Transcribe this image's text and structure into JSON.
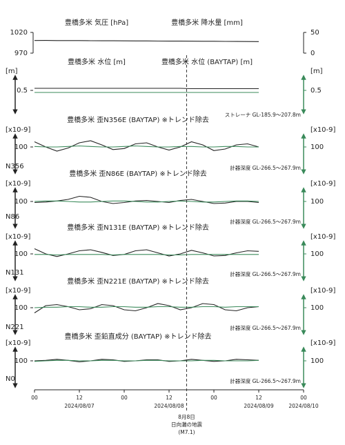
{
  "chart_data": [
    {
      "type": "line",
      "title": "豊橋多米 気圧 [hPa]",
      "title2": "豊橋多米 降水量 [mm]",
      "xlim": [
        0,
        72
      ],
      "ylim": [
        970,
        1020
      ],
      "yticks": [
        970,
        1020
      ],
      "y2lim": [
        0,
        50
      ],
      "y2ticks": [
        0,
        50
      ],
      "x": [
        0,
        3,
        6,
        9,
        12,
        15,
        18,
        21,
        24,
        27,
        30,
        33,
        36,
        39,
        42,
        45,
        48,
        51,
        54,
        57,
        60
      ],
      "series": [
        {
          "color": "#222222",
          "values": [
            1000.5,
            1000.6,
            1000.4,
            1000.3,
            1000.3,
            1000,
            999.8,
            999.8,
            999.6,
            999.5,
            999.5,
            999.2,
            999,
            999,
            998.8,
            998.6,
            998.6,
            998.4,
            998.2,
            998,
            997.8
          ]
        }
      ]
    },
    {
      "type": "line",
      "title": "豊橋多米 水位 [m]",
      "title2": "豊橋多米 水位 (BAYTAP) [m]",
      "ylabel": "[m]",
      "y2label": "[m]",
      "note": "ストレーナ GL-185.9～207.8m",
      "xlim": [
        0,
        72
      ],
      "ylim": [
        0,
        1
      ],
      "yticks": [
        0.5
      ],
      "y2lim": [
        0,
        1
      ],
      "y2ticks": [
        0.5
      ],
      "x": [
        0,
        3,
        6,
        9,
        12,
        15,
        18,
        21,
        24,
        27,
        30,
        33,
        36,
        39,
        42,
        45,
        48,
        51,
        54,
        57,
        60
      ],
      "series": [
        {
          "color": "#222222",
          "values": [
            0.56,
            0.56,
            0.56,
            0.56,
            0.56,
            0.56,
            0.56,
            0.56,
            0.56,
            0.56,
            0.56,
            0.56,
            0.56,
            0.56,
            0.55,
            0.55,
            0.55,
            0.55,
            0.55,
            0.55,
            0.55
          ]
        },
        {
          "color": "#3a8a5a",
          "axis": "y2",
          "values": [
            0.44,
            0.44,
            0.44,
            0.44,
            0.44,
            0.44,
            0.44,
            0.44,
            0.44,
            0.44,
            0.44,
            0.44,
            0.44,
            0.44,
            0.44,
            0.44,
            0.44,
            0.44,
            0.44,
            0.44,
            0.44
          ]
        }
      ]
    },
    {
      "type": "line",
      "title": "豊橋多米 歪N356E (BAYTAP) ※トレンド除去",
      "ylabel": "[x10-9]",
      "y2label": "[x10-9]",
      "station": "N356",
      "note": "計器深度 GL-266.5～267.9m",
      "xlim": [
        0,
        72
      ],
      "ylim": [
        60,
        140
      ],
      "yticks": [
        100
      ],
      "y2lim": [
        60,
        140
      ],
      "y2ticks": [
        100
      ],
      "x": [
        0,
        3,
        6,
        9,
        12,
        15,
        18,
        21,
        24,
        27,
        30,
        33,
        36,
        39,
        42,
        45,
        48,
        51,
        54,
        57,
        60
      ],
      "series": [
        {
          "color": "#222222",
          "values": [
            110,
            100,
            92,
            98,
            108,
            112,
            104,
            95,
            97,
            106,
            108,
            100,
            94,
            100,
            110,
            104,
            93,
            96,
            104,
            106,
            100
          ]
        },
        {
          "color": "#3a8a5a",
          "axis": "y2",
          "values": [
            101,
            100,
            100,
            101,
            102,
            101,
            100,
            100,
            101,
            102,
            101,
            100,
            100,
            101,
            101,
            100,
            100,
            101,
            101,
            100,
            100
          ]
        }
      ]
    },
    {
      "type": "line",
      "title": "豊橋多米 歪N86E (BAYTAP) ※トレンド除去",
      "ylabel": "[x10-9]",
      "y2label": "[x10-9]",
      "station": "N86",
      "note": "計器深度 GL-266.5～267.9m",
      "xlim": [
        0,
        72
      ],
      "ylim": [
        60,
        140
      ],
      "yticks": [
        100
      ],
      "y2lim": [
        60,
        140
      ],
      "y2ticks": [
        100
      ],
      "x": [
        0,
        3,
        6,
        9,
        12,
        15,
        18,
        21,
        24,
        27,
        30,
        33,
        36,
        39,
        42,
        45,
        48,
        51,
        54,
        57,
        60
      ],
      "series": [
        {
          "color": "#222222",
          "values": [
            98,
            99,
            101,
            104,
            110,
            108,
            100,
            96,
            98,
            101,
            102,
            100,
            98,
            102,
            104,
            100,
            96,
            97,
            100,
            100,
            98
          ]
        },
        {
          "color": "#3a8a5a",
          "axis": "y2",
          "values": [
            100,
            101,
            101,
            100,
            99,
            99,
            100,
            101,
            101,
            100,
            99,
            99,
            100,
            101,
            100,
            99,
            99,
            100,
            101,
            101,
            100
          ]
        }
      ]
    },
    {
      "type": "line",
      "title": "豊橋多米 歪N131E (BAYTAP) ※トレンド除去",
      "ylabel": "[x10-9]",
      "y2label": "[x10-9]",
      "station": "N131",
      "note": "計器深度 GL-266.5～267.9m",
      "xlim": [
        0,
        72
      ],
      "ylim": [
        60,
        140
      ],
      "yticks": [
        100
      ],
      "y2lim": [
        60,
        140
      ],
      "y2ticks": [
        100
      ],
      "x": [
        0,
        3,
        6,
        9,
        12,
        15,
        18,
        21,
        24,
        27,
        30,
        33,
        36,
        39,
        42,
        45,
        48,
        51,
        54,
        57,
        60
      ],
      "series": [
        {
          "color": "#222222",
          "values": [
            110,
            100,
            95,
            100,
            106,
            108,
            103,
            97,
            99,
            106,
            108,
            102,
            96,
            100,
            107,
            102,
            96,
            97,
            102,
            106,
            105
          ]
        },
        {
          "color": "#3a8a5a",
          "axis": "y2",
          "values": [
            99,
            99,
            98,
            99,
            99,
            99,
            99,
            98,
            99,
            99,
            99,
            99,
            98,
            98,
            99,
            99,
            99,
            99,
            99,
            99,
            99
          ]
        }
      ]
    },
    {
      "type": "line",
      "title": "豊橋多米 歪N221E (BAYTAP) ※トレンド除去",
      "ylabel": "[x10-9]",
      "y2label": "[x10-9]",
      "station": "N221",
      "note": "計器深度 GL-266.5～267.9m",
      "xlim": [
        0,
        72
      ],
      "ylim": [
        60,
        140
      ],
      "yticks": [
        100
      ],
      "y2lim": [
        60,
        140
      ],
      "y2ticks": [
        100
      ],
      "x": [
        0,
        3,
        6,
        9,
        12,
        15,
        18,
        21,
        24,
        27,
        30,
        33,
        36,
        39,
        42,
        45,
        48,
        51,
        54,
        57,
        60
      ],
      "series": [
        {
          "color": "#222222",
          "values": [
            90,
            104,
            106,
            102,
            96,
            98,
            106,
            104,
            96,
            94,
            100,
            108,
            104,
            96,
            100,
            108,
            106,
            96,
            94,
            100,
            102
          ]
        },
        {
          "color": "#3a8a5a",
          "axis": "y2",
          "values": [
            100,
            101,
            101,
            102,
            102,
            101,
            101,
            102,
            102,
            101,
            101,
            102,
            102,
            101,
            101,
            102,
            102,
            101,
            102,
            102,
            102
          ]
        }
      ]
    },
    {
      "type": "line",
      "title": "豊橋多米 歪鉛直成分 (BAYTAP) ※トレンド除去",
      "ylabel": "[x10-9]",
      "y2label": "[x10-9]",
      "station": "N0",
      "note": "計器深度 GL-266.5～267.9m",
      "xlim": [
        0,
        72
      ],
      "ylim": [
        60,
        140
      ],
      "yticks": [
        100
      ],
      "y2lim": [
        60,
        140
      ],
      "y2ticks": [
        100
      ],
      "x": [
        0,
        3,
        6,
        9,
        12,
        15,
        18,
        21,
        24,
        27,
        30,
        33,
        36,
        39,
        42,
        45,
        48,
        51,
        54,
        57,
        60
      ],
      "series": [
        {
          "color": "#222222",
          "values": [
            100,
            101,
            103,
            101,
            98,
            100,
            103,
            102,
            99,
            100,
            102,
            102,
            99,
            100,
            103,
            101,
            99,
            100,
            103,
            102,
            101
          ]
        },
        {
          "color": "#3a8a5a",
          "axis": "y2",
          "values": [
            99,
            100,
            101,
            101,
            100,
            100,
            101,
            101,
            100,
            100,
            101,
            101,
            100,
            100,
            100,
            101,
            101,
            100,
            100,
            100,
            101
          ]
        }
      ],
      "xticks": [
        {
          "value": 0,
          "label": "00"
        },
        {
          "value": 12,
          "label": "12"
        },
        {
          "value": 24,
          "label": "00"
        },
        {
          "value": 36,
          "label": "12"
        },
        {
          "value": 48,
          "label": "00"
        },
        {
          "value": 60,
          "label": "12"
        },
        {
          "value": 72,
          "label": "00"
        }
      ],
      "date_ticks": [
        {
          "value": 12,
          "label": "2024/08/07"
        },
        {
          "value": 36,
          "label": "2024/08/08"
        },
        {
          "value": 60,
          "label": "2024/08/09"
        },
        {
          "value": 72,
          "label": "2024/08/10"
        }
      ],
      "event_x": 40.7,
      "annotations": [
        "8月8日",
        "日向灘の地震",
        "(M7.1)"
      ]
    }
  ]
}
